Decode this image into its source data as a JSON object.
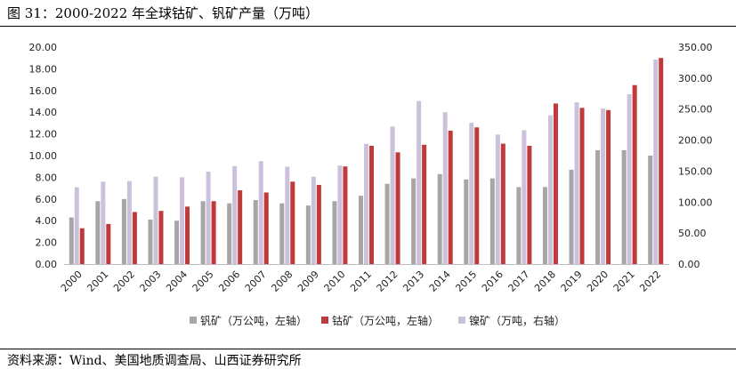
{
  "title": "图 31：2000-2022 年全球钴矿、钒矿产量（万吨）",
  "source": "资料来源：Wind、美国地质调查局、山西证券研究所",
  "chart_data": {
    "type": "bar",
    "categories": [
      "2000",
      "2001",
      "2002",
      "2003",
      "2004",
      "2005",
      "2006",
      "2007",
      "2008",
      "2009",
      "2010",
      "2011",
      "2012",
      "2013",
      "2014",
      "2015",
      "2016",
      "2017",
      "2018",
      "2019",
      "2020",
      "2021",
      "2022"
    ],
    "series": [
      {
        "name": "钒矿（万公吨，左轴）",
        "axis": "left",
        "color": "#a6a6a6",
        "values": [
          4.3,
          5.8,
          6.0,
          4.1,
          4.0,
          5.8,
          5.6,
          5.9,
          5.6,
          5.4,
          5.8,
          6.3,
          7.4,
          7.9,
          8.3,
          7.8,
          7.9,
          7.1,
          7.1,
          8.7,
          10.5,
          10.5,
          10.0
        ]
      },
      {
        "name": "钴矿（万公吨，左轴）",
        "axis": "left",
        "color": "#c0393b",
        "values": [
          3.3,
          3.7,
          4.8,
          4.9,
          5.3,
          5.8,
          6.8,
          6.6,
          7.6,
          7.3,
          9.0,
          10.9,
          10.3,
          11.0,
          12.3,
          12.6,
          11.1,
          10.9,
          14.8,
          14.4,
          14.2,
          16.5,
          19.0
        ]
      },
      {
        "name": "镍矿（万吨，右轴）",
        "axis": "right",
        "color": "#ccc1da",
        "values": [
          124,
          133,
          134,
          141,
          140,
          149,
          158,
          166,
          157,
          141,
          159,
          194,
          222,
          263,
          245,
          228,
          209,
          216,
          240,
          261,
          251,
          274,
          330
        ]
      }
    ],
    "y_left": {
      "min": 0,
      "max": 20,
      "step": 2,
      "ticks": [
        "0.00",
        "2.00",
        "4.00",
        "6.00",
        "8.00",
        "10.00",
        "12.00",
        "14.00",
        "16.00",
        "18.00",
        "20.00"
      ]
    },
    "y_right": {
      "min": 0,
      "max": 350,
      "step": 50,
      "ticks": [
        "0.00",
        "50.00",
        "100.00",
        "150.00",
        "200.00",
        "250.00",
        "300.00",
        "350.00"
      ]
    },
    "legend_position": "bottom",
    "grid": false
  }
}
